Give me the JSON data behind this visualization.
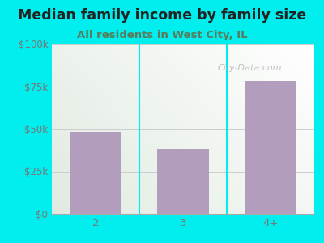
{
  "categories": [
    "2",
    "3",
    "4+"
  ],
  "values": [
    48000,
    38000,
    78000
  ],
  "bar_color": "#b39dbd",
  "title": "Median family income by family size",
  "subtitle": "All residents in West City, IL",
  "subtitle_color": "#5a7a5a",
  "title_color": "#222222",
  "background_color": "#00EEEE",
  "ylim": [
    0,
    100000
  ],
  "yticks": [
    0,
    25000,
    50000,
    75000,
    100000
  ],
  "ytick_labels": [
    "$0",
    "$25k",
    "$50k",
    "$75k",
    "$100k"
  ],
  "tick_color": "#777777",
  "watermark": "City-Data.com",
  "title_fontsize": 12.5,
  "subtitle_fontsize": 9.5,
  "tick_fontsize": 8.5,
  "grid_color": "#cccccc",
  "divider_color": "#00EEEE",
  "plot_bg_color_topleft": "#e8f5e9",
  "plot_bg_color_topright": "#ffffff",
  "plot_bg_color_bottomleft": "#c8e6c9",
  "plot_bg_color_bottomright": "#f0f8f0"
}
